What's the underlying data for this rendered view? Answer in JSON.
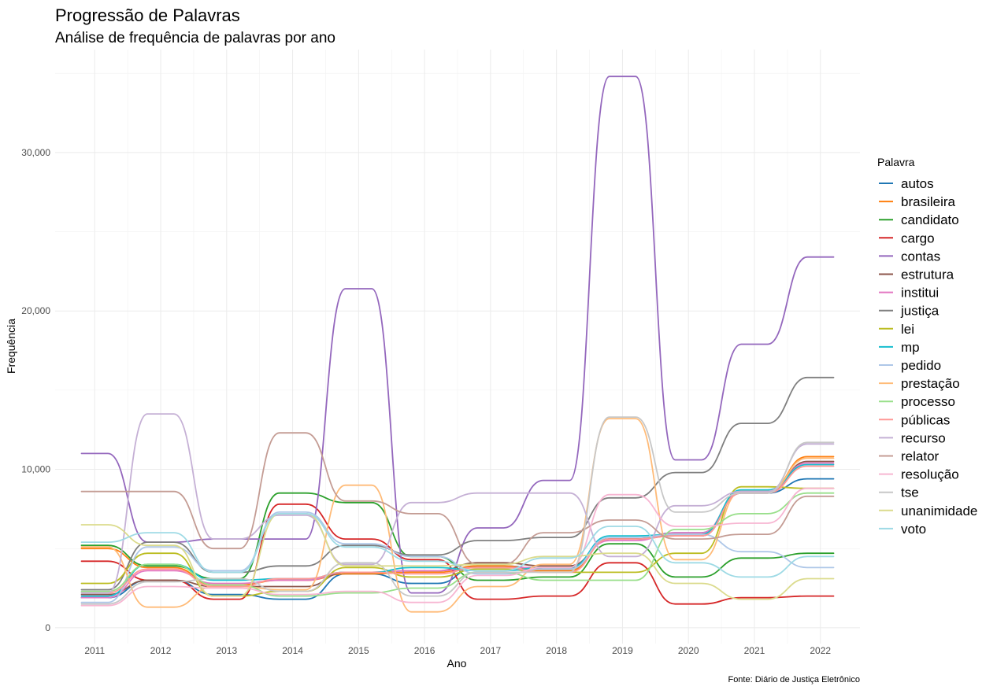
{
  "chart_data": {
    "type": "line",
    "title": "Progressão de Palavras",
    "subtitle": "Análise de frequência de palavras por ano",
    "xlabel": "Ano",
    "ylabel": "Frequência",
    "caption": "Fonte: Diário de Justiça Eletrônico",
    "legend_title": "Palavra",
    "legend_position": "right",
    "grid": true,
    "x": [
      2011,
      2012,
      2013,
      2014,
      2015,
      2016,
      2017,
      2018,
      2019,
      2020,
      2021,
      2022
    ],
    "x_tick_labels": [
      "2011",
      "2012",
      "2013",
      "2014",
      "2015",
      "2016",
      "2017",
      "2018",
      "2019",
      "2020",
      "2021",
      "2022"
    ],
    "y_ticks": [
      0,
      10000,
      20000,
      30000
    ],
    "y_tick_labels": [
      "0",
      "10,000",
      "20,000",
      "30,000"
    ],
    "ylim": [
      -1000,
      36500
    ],
    "xlim": [
      2010.4,
      2022.6
    ],
    "series": [
      {
        "name": "autos",
        "color": "#1f77b4",
        "values": [
          1900,
          3000,
          2100,
          1800,
          3400,
          2800,
          3900,
          3700,
          5600,
          6000,
          8500,
          9400
        ]
      },
      {
        "name": "brasileira",
        "color": "#ff7f0e",
        "values": [
          5000,
          3800,
          2700,
          3000,
          3400,
          3500,
          3900,
          3600,
          5600,
          5900,
          8600,
          10800
        ]
      },
      {
        "name": "candidato",
        "color": "#2ca02c",
        "values": [
          5200,
          3900,
          3100,
          8500,
          7900,
          4500,
          3000,
          3200,
          5300,
          3200,
          4400,
          4700
        ]
      },
      {
        "name": "cargo",
        "color": "#d62728",
        "values": [
          4200,
          3000,
          1800,
          7800,
          5600,
          4300,
          1800,
          2000,
          4100,
          1500,
          1900,
          2000
        ]
      },
      {
        "name": "contas",
        "color": "#9467bd",
        "values": [
          11000,
          5400,
          5600,
          5600,
          21400,
          2200,
          6300,
          9300,
          34800,
          10600,
          17900,
          23400
        ]
      },
      {
        "name": "estrutura",
        "color": "#8c564b",
        "values": [
          2100,
          3000,
          2600,
          2600,
          3500,
          3600,
          4100,
          3900,
          5600,
          5800,
          8500,
          10500
        ]
      },
      {
        "name": "institui",
        "color": "#e377c2",
        "values": [
          1900,
          3600,
          2800,
          3000,
          3500,
          3600,
          3800,
          3800,
          5500,
          6000,
          8600,
          10400
        ]
      },
      {
        "name": "justiça",
        "color": "#7f7f7f",
        "values": [
          2400,
          5400,
          3500,
          3900,
          5200,
          4600,
          5500,
          5700,
          8200,
          9800,
          12900,
          15800
        ]
      },
      {
        "name": "lei",
        "color": "#bcbd22",
        "values": [
          2800,
          4700,
          2000,
          2300,
          3800,
          3200,
          3700,
          3500,
          3500,
          4700,
          8900,
          8800
        ]
      },
      {
        "name": "mp",
        "color": "#17becf",
        "values": [
          2000,
          4000,
          3000,
          3100,
          3500,
          3800,
          3600,
          3800,
          5800,
          5900,
          8700,
          10300
        ]
      },
      {
        "name": "pedido",
        "color": "#aec7e8",
        "values": [
          1600,
          5100,
          3600,
          7300,
          5300,
          4500,
          3400,
          3700,
          5700,
          5900,
          4800,
          3800
        ]
      },
      {
        "name": "prestação",
        "color": "#ffbb78",
        "values": [
          5100,
          1300,
          2600,
          2400,
          9000,
          1000,
          2600,
          4000,
          13200,
          4300,
          8600,
          10700
        ]
      },
      {
        "name": "processo",
        "color": "#98df8a",
        "values": [
          2300,
          4000,
          2700,
          2000,
          2200,
          2500,
          3500,
          3000,
          3000,
          6200,
          7200,
          8500
        ]
      },
      {
        "name": "públicas",
        "color": "#ff9896",
        "values": [
          2200,
          3700,
          2600,
          3100,
          3500,
          3400,
          3800,
          3500,
          5600,
          5800,
          8500,
          10200
        ]
      },
      {
        "name": "recurso",
        "color": "#c5b0d5",
        "values": [
          2200,
          13500,
          5600,
          7100,
          4000,
          7900,
          8500,
          8500,
          4500,
          7700,
          8600,
          11600
        ]
      },
      {
        "name": "relator",
        "color": "#c49c94",
        "values": [
          8600,
          8600,
          5000,
          12300,
          8000,
          7200,
          4000,
          6000,
          6800,
          5600,
          5900,
          8300
        ]
      },
      {
        "name": "resolução",
        "color": "#f7b6d2",
        "values": [
          1400,
          2600,
          2500,
          2100,
          2300,
          1600,
          3300,
          3800,
          8400,
          6400,
          6600,
          8800
        ]
      },
      {
        "name": "tse",
        "color": "#c7c7c7",
        "values": [
          1500,
          2900,
          3100,
          2300,
          4100,
          2000,
          3500,
          3500,
          13300,
          7300,
          8500,
          11700
        ]
      },
      {
        "name": "unanimidade",
        "color": "#dbdb8d",
        "values": [
          6500,
          5200,
          2000,
          7200,
          3900,
          3900,
          4000,
          4500,
          4700,
          2800,
          1800,
          3100
        ]
      },
      {
        "name": "voto",
        "color": "#9edae5",
        "values": [
          5400,
          6000,
          3500,
          7200,
          5100,
          4200,
          3600,
          4400,
          6400,
          4100,
          3200,
          4500
        ]
      }
    ]
  }
}
